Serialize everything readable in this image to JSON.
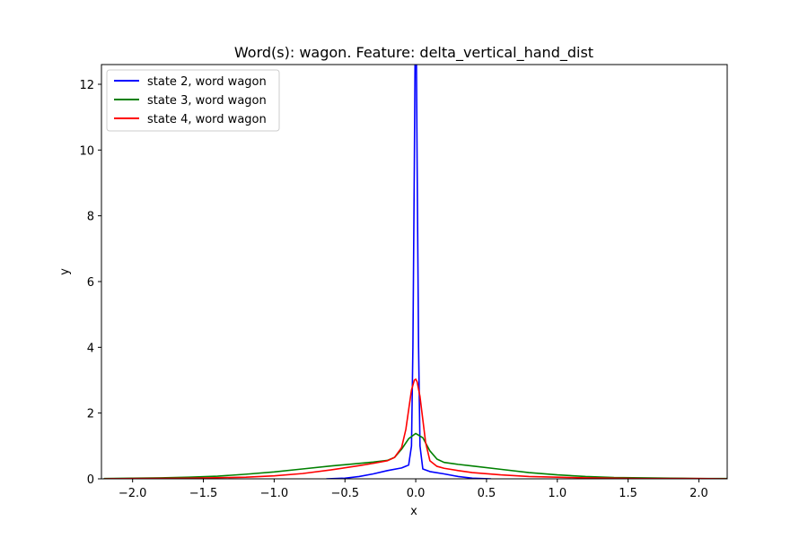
{
  "chart_data": {
    "type": "line",
    "title": "Word(s): wagon. Feature: delta_vertical_hand_dist",
    "xlabel": "x",
    "ylabel": "y",
    "xlim": [
      -2.22,
      2.2
    ],
    "ylim": [
      0,
      12.6
    ],
    "xticks": [
      -2.0,
      -1.5,
      -1.0,
      -0.5,
      0.0,
      0.5,
      1.0,
      1.5,
      2.0
    ],
    "xtick_labels": [
      "−2.0",
      "−1.5",
      "−1.0",
      "−0.5",
      "0.0",
      "0.5",
      "1.0",
      "1.5",
      "2.0"
    ],
    "yticks": [
      0,
      2,
      4,
      6,
      8,
      10,
      12
    ],
    "ytick_labels": [
      "0",
      "2",
      "4",
      "6",
      "8",
      "10",
      "12"
    ],
    "grid": false,
    "legend_position": "top-left",
    "series": [
      {
        "name": "state 2, word wagon",
        "color": "#0000ff",
        "x": [
          -0.63,
          -0.5,
          -0.4,
          -0.3,
          -0.2,
          -0.1,
          -0.05,
          -0.03,
          -0.02,
          -0.01,
          -0.005,
          0.0,
          0.005,
          0.01,
          0.02,
          0.03,
          0.05,
          0.1,
          0.2,
          0.3,
          0.4,
          0.53
        ],
        "y": [
          0.0,
          0.02,
          0.07,
          0.15,
          0.25,
          0.33,
          0.42,
          1.0,
          4.0,
          9.5,
          12.6,
          12.6,
          12.6,
          9.5,
          4.0,
          1.0,
          0.3,
          0.22,
          0.15,
          0.07,
          0.02,
          0.0
        ]
      },
      {
        "name": "state 3, word wagon",
        "color": "#008000",
        "x": [
          -2.2,
          -2.0,
          -1.8,
          -1.6,
          -1.4,
          -1.2,
          -1.0,
          -0.8,
          -0.6,
          -0.4,
          -0.3,
          -0.2,
          -0.15,
          -0.1,
          -0.05,
          0.0,
          0.05,
          0.1,
          0.15,
          0.2,
          0.3,
          0.4,
          0.6,
          0.8,
          1.0,
          1.2,
          1.4,
          1.6,
          1.8,
          2.0,
          2.2
        ],
        "y": [
          0.01,
          0.02,
          0.03,
          0.05,
          0.08,
          0.14,
          0.21,
          0.3,
          0.39,
          0.47,
          0.51,
          0.56,
          0.65,
          0.9,
          1.22,
          1.38,
          1.25,
          0.85,
          0.6,
          0.5,
          0.44,
          0.39,
          0.29,
          0.19,
          0.12,
          0.07,
          0.04,
          0.03,
          0.02,
          0.01,
          0.01
        ]
      },
      {
        "name": "state 4, word wagon",
        "color": "#ff0000",
        "x": [
          -2.2,
          -2.0,
          -1.6,
          -1.2,
          -1.0,
          -0.8,
          -0.6,
          -0.4,
          -0.3,
          -0.2,
          -0.15,
          -0.1,
          -0.07,
          -0.05,
          -0.03,
          -0.01,
          0.0,
          0.01,
          0.03,
          0.05,
          0.07,
          0.1,
          0.15,
          0.2,
          0.3,
          0.4,
          0.6,
          0.8,
          1.0,
          1.2,
          1.6,
          2.0,
          2.2
        ],
        "y": [
          0.0,
          0.01,
          0.02,
          0.05,
          0.09,
          0.16,
          0.27,
          0.4,
          0.47,
          0.55,
          0.65,
          0.95,
          1.5,
          2.1,
          2.7,
          3.0,
          3.03,
          2.95,
          2.5,
          1.8,
          1.1,
          0.55,
          0.38,
          0.32,
          0.25,
          0.19,
          0.12,
          0.07,
          0.05,
          0.03,
          0.01,
          0.01,
          0.0
        ]
      }
    ]
  }
}
